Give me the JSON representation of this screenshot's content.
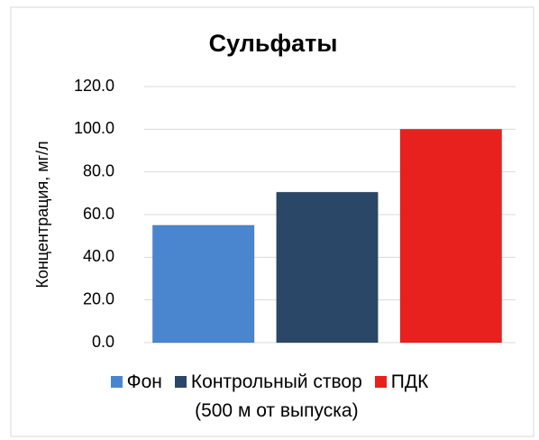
{
  "chart_data": {
    "type": "bar",
    "title": "Сульфаты",
    "y_label": "Концентрация,  мг/л",
    "series": [
      {
        "name": "Фон",
        "color": "#4a86d0",
        "values": [
          55
        ]
      },
      {
        "name": "Контрольный створ\n(500 м от выпуска)",
        "color": "#2b4767",
        "values": [
          70.5
        ]
      },
      {
        "name": "ПДК",
        "color": "#e8211e",
        "values": [
          100
        ]
      }
    ],
    "ylim": [
      0,
      120
    ],
    "yticks": [
      {
        "value": 0,
        "label": "0.0"
      },
      {
        "value": 20,
        "label": "20.0"
      },
      {
        "value": 40,
        "label": "40.0"
      },
      {
        "value": 60,
        "label": "60.0"
      },
      {
        "value": 80,
        "label": "80.0"
      },
      {
        "value": 100,
        "label": "100.0"
      },
      {
        "value": 120,
        "label": "120.0"
      }
    ],
    "grid": true,
    "legend": "bottom"
  }
}
